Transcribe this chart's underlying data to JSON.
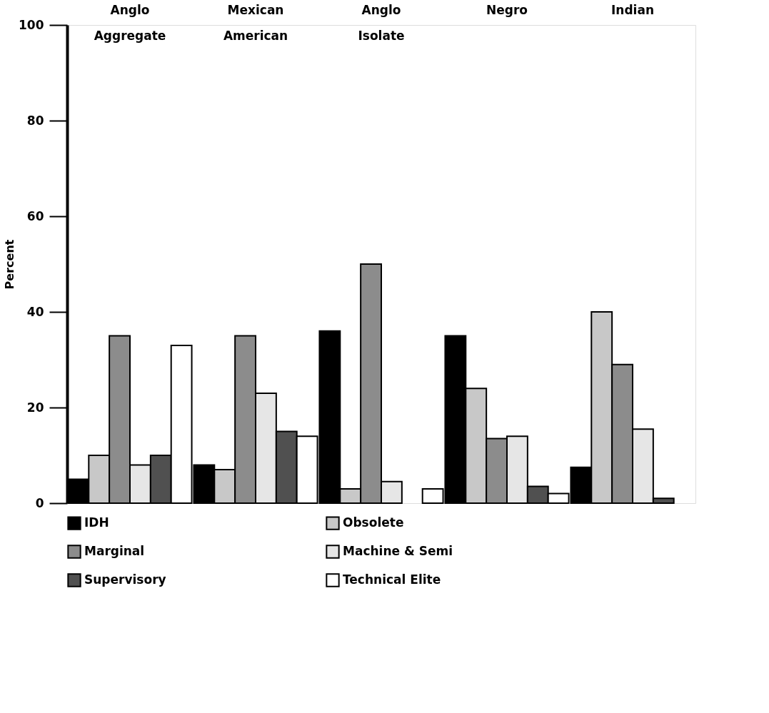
{
  "chart_data": {
    "type": "bar",
    "ylabel": "Percent",
    "categories": [
      "Anglo Aggregate",
      "Mexican American",
      "Anglo Isolate",
      "Negro",
      "Indian"
    ],
    "series": [
      {
        "name": "IDH",
        "color": "#000000",
        "values": [
          5,
          8,
          36,
          35,
          7.5
        ]
      },
      {
        "name": "Obsolete",
        "color": "#c8c8c8",
        "values": [
          10,
          7,
          3,
          24,
          40
        ]
      },
      {
        "name": "Marginal",
        "color": "#8c8c8c",
        "values": [
          35,
          35,
          50,
          13.5,
          29
        ]
      },
      {
        "name": "Machine & Semi",
        "color": "#e6e6e6",
        "values": [
          8,
          23,
          4.5,
          14,
          15.5
        ]
      },
      {
        "name": "Supervisory",
        "color": "#505050",
        "values": [
          10,
          15,
          0,
          3.5,
          1
        ]
      },
      {
        "name": "Technical Elite",
        "color": "#ffffff",
        "values": [
          33,
          14,
          3,
          2,
          0
        ]
      }
    ],
    "ylim": [
      0,
      100
    ],
    "yticks": [
      0,
      20,
      40,
      60,
      80,
      100
    ],
    "grid": false,
    "legend": "bottom"
  }
}
